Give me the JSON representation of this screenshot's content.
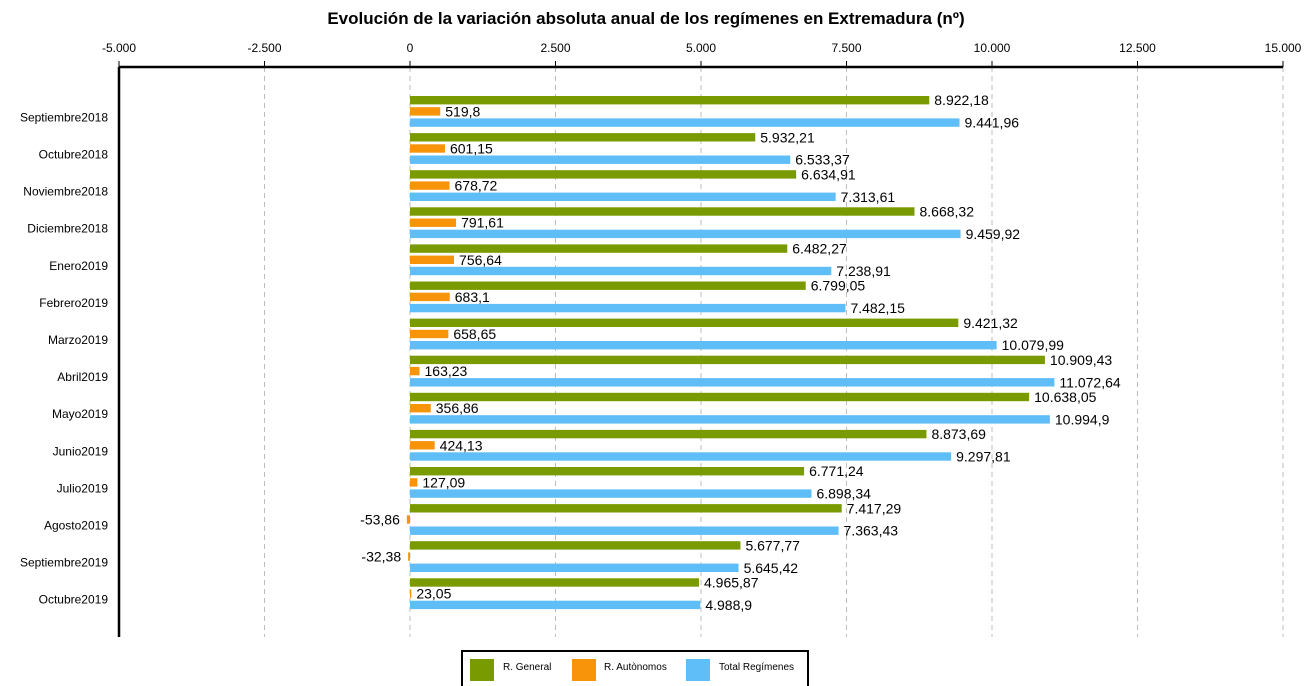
{
  "chart_data": {
    "type": "bar",
    "orientation": "horizontal",
    "title": "Evolución de la variación absoluta anual de los regímenes en Extremadura (nº)",
    "xlabel": "",
    "ylabel": "",
    "xlim": [
      -5000,
      15000
    ],
    "x_ticks": [
      -5000,
      -2500,
      0,
      2500,
      5000,
      7500,
      10000,
      12500,
      15000
    ],
    "x_tick_labels": [
      "-5.000",
      "-2.500",
      "0",
      "2.500",
      "5.000",
      "7.500",
      "10.000",
      "12.500",
      "15.000"
    ],
    "x_axis_position": "top",
    "grid": "vertical dashed",
    "legend_position": "bottom-center",
    "categories": [
      "Septiembre2018",
      "Octubre2018",
      "Noviembre2018",
      "Diciembre2018",
      "Enero2019",
      "Febrero2019",
      "Marzo2019",
      "Abril2019",
      "Mayo2019",
      "Junio2019",
      "Julio2019",
      "Agosto2019",
      "Septiembre2019",
      "Octubre2019"
    ],
    "series": [
      {
        "name": "R. General",
        "color": "#7a9a01",
        "values": [
          8922.18,
          5932.21,
          6634.91,
          8668.32,
          6482.27,
          6799.05,
          9421.32,
          10909.43,
          10638.05,
          8873.69,
          6771.24,
          7417.29,
          5677.77,
          4965.87
        ],
        "labels": [
          "8.922,18",
          "5.932,21",
          "6.634,91",
          "8.668,32",
          "6.482,27",
          "6.799,05",
          "9.421,32",
          "10.909,43",
          "10.638,05",
          "8.873,69",
          "6.771,24",
          "7.417,29",
          "5.677,77",
          "4.965,87"
        ]
      },
      {
        "name": "R. Autònomos",
        "color": "#f7940a",
        "values": [
          519.8,
          601.15,
          678.72,
          791.61,
          756.64,
          683.1,
          658.65,
          163.23,
          356.86,
          424.13,
          127.09,
          -53.86,
          -32.38,
          23.05
        ],
        "labels": [
          "519,8",
          "601,15",
          "678,72",
          "791,61",
          "756,64",
          "683,1",
          "658,65",
          "163,23",
          "356,86",
          "424,13",
          "127,09",
          "-53,86",
          "-32,38",
          "23,05"
        ]
      },
      {
        "name": "Total Regímenes",
        "color": "#5fbef8",
        "values": [
          9441.96,
          6533.37,
          7313.61,
          9459.92,
          7238.91,
          7482.15,
          10079.99,
          11072.64,
          10994.9,
          9297.81,
          6898.34,
          7363.43,
          5645.42,
          4988.9
        ],
        "labels": [
          "9.441,96",
          "6.533,37",
          "7.313,61",
          "9.459,92",
          "7.238,91",
          "7.482,15",
          "10.079,99",
          "11.072,64",
          "10.994,9",
          "9.297,81",
          "6.898,34",
          "7.363,43",
          "5.645,42",
          "4.988,9"
        ]
      }
    ]
  }
}
